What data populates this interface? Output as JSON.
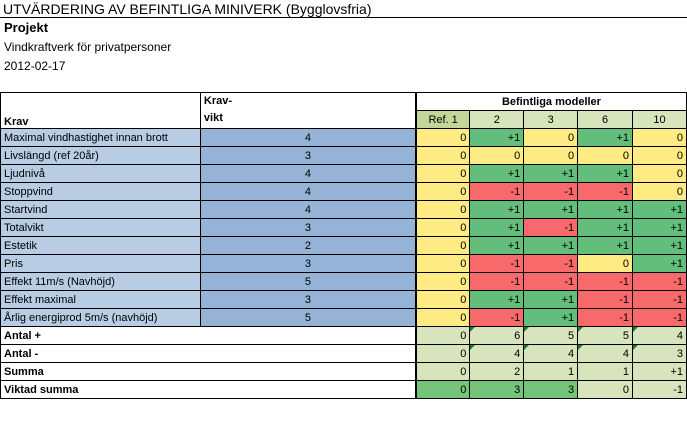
{
  "title": "UTVÄRDERING AV BEFINTLIGA MINIVERK (Bygglovsfria)",
  "project_label": "Projekt",
  "project_name": "Vindkraftverk för privatpersoner",
  "date": "2012-02-17",
  "headers": {
    "krav": "Krav",
    "kravvikt_line1": "Krav-",
    "kravvikt_line2": "vikt",
    "models_group": "Befintliga modeller",
    "models": [
      "Ref. 1",
      "2",
      "3",
      "6",
      "10"
    ]
  },
  "rows": [
    {
      "label": "Maximal vindhastighet innan brott",
      "weight": "4",
      "values": [
        "0",
        "+1",
        "0",
        "+1",
        "0"
      ]
    },
    {
      "label": "Livslängd (ref 20år)",
      "weight": "3",
      "values": [
        "0",
        "0",
        "0",
        "0",
        "0"
      ]
    },
    {
      "label": "Ljudnivå",
      "weight": "4",
      "values": [
        "0",
        "+1",
        "+1",
        "+1",
        "0"
      ]
    },
    {
      "label": "Stoppvind",
      "weight": "4",
      "values": [
        "0",
        "-1",
        "-1",
        "-1",
        "0"
      ]
    },
    {
      "label": "Startvind",
      "weight": "4",
      "values": [
        "0",
        "+1",
        "+1",
        "+1",
        "+1"
      ]
    },
    {
      "label": "Totalvikt",
      "weight": "3",
      "values": [
        "0",
        "+1",
        "-1",
        "+1",
        "+1"
      ]
    },
    {
      "label": "Estetik",
      "weight": "2",
      "values": [
        "0",
        "+1",
        "+1",
        "+1",
        "+1"
      ]
    },
    {
      "label": "Pris",
      "weight": "3",
      "values": [
        "0",
        "-1",
        "-1",
        "0",
        "+1"
      ]
    },
    {
      "label": "Effekt 11m/s (Navhöjd)",
      "weight": "5",
      "values": [
        "0",
        "-1",
        "-1",
        "-1",
        "-1"
      ]
    },
    {
      "label": "Effekt maximal",
      "weight": "3",
      "values": [
        "0",
        "+1",
        "+1",
        "-1",
        "-1"
      ]
    },
    {
      "label": "Årlig energiprod 5m/s (navhöjd)",
      "weight": "5",
      "values": [
        "0",
        "-1",
        "+1",
        "-1",
        "-1"
      ]
    }
  ],
  "summary": [
    {
      "label": "Antal +",
      "values": [
        "0",
        "6",
        "5",
        "5",
        "4"
      ]
    },
    {
      "label": "Antal -",
      "values": [
        "0",
        "4",
        "4",
        "4",
        "3"
      ]
    },
    {
      "label": "Summa",
      "values": [
        "0",
        "2",
        "1",
        "1",
        "+1"
      ]
    },
    {
      "label": "Viktad summa",
      "values": [
        "0",
        "3",
        "3",
        "0",
        "-1"
      ]
    }
  ],
  "colors": {
    "zero": "#ffeb84",
    "plus": "#63be7b",
    "minus": "#f8696b",
    "requirement": "#b8cce4",
    "weight": "#95b3d7",
    "summary": "#d8e4bc"
  }
}
